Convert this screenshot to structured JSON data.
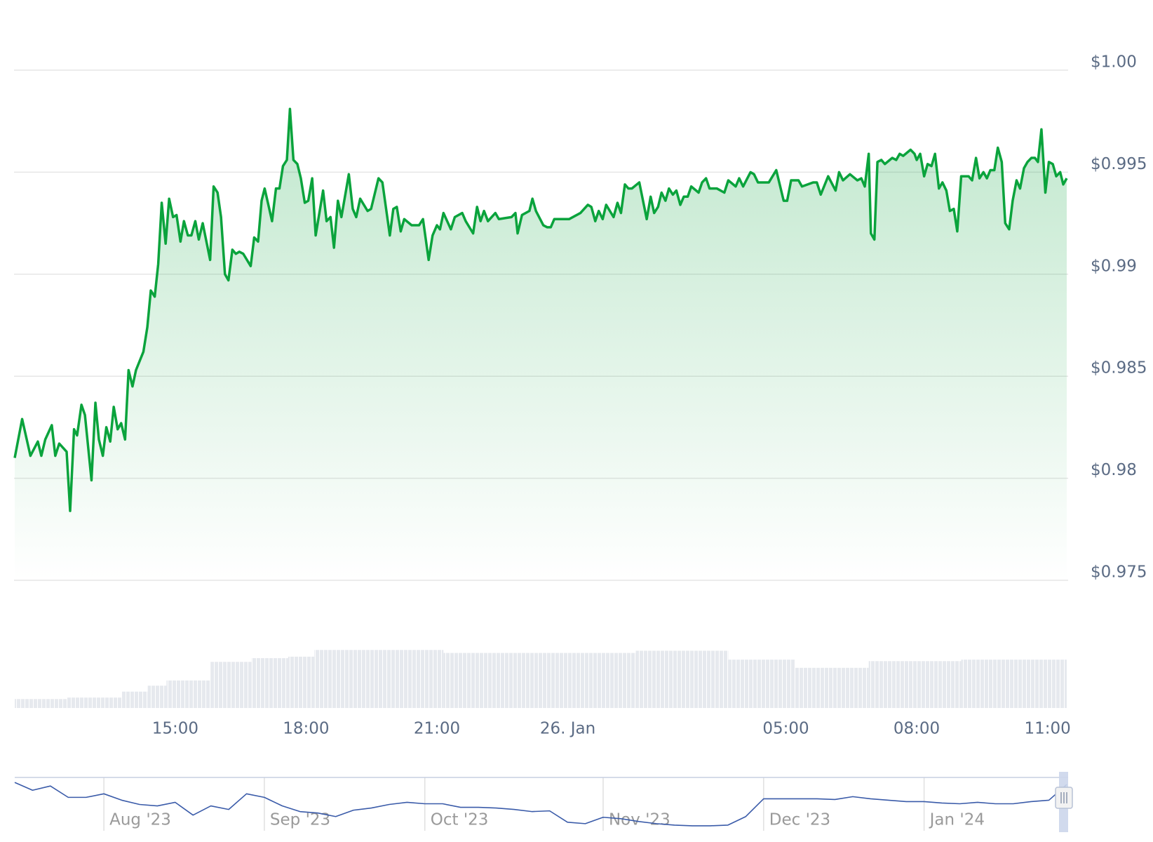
{
  "chart_data": [
    {
      "type": "area",
      "color": "#0aa33c",
      "grid": true,
      "xlim": [
        11.32,
        35.44
      ],
      "ylim": [
        0.975,
        1.0
      ],
      "xticks": [
        {
          "value": 15,
          "label": "15:00"
        },
        {
          "value": 18,
          "label": "18:00"
        },
        {
          "value": 21,
          "label": "21:00"
        },
        {
          "value": 24,
          "label": "26. Jan"
        },
        {
          "value": 29,
          "label": "05:00"
        },
        {
          "value": 32,
          "label": "08:00"
        },
        {
          "value": 35,
          "label": "11:00"
        }
      ],
      "yticks": [
        {
          "value": 0.975,
          "label": "$0.975"
        },
        {
          "value": 0.98,
          "label": "$0.98"
        },
        {
          "value": 0.985,
          "label": "$0.985"
        },
        {
          "value": 0.99,
          "label": "$0.99"
        },
        {
          "value": 0.995,
          "label": "$0.995"
        },
        {
          "value": 1.0,
          "label": "$1.00"
        }
      ],
      "x": [
        11.32,
        11.49,
        11.68,
        11.85,
        11.93,
        12.02,
        12.17,
        12.25,
        12.34,
        12.51,
        12.59,
        12.68,
        12.75,
        12.85,
        12.93,
        13.08,
        13.17,
        13.25,
        13.34,
        13.42,
        13.51,
        13.59,
        13.68,
        13.76,
        13.85,
        13.93,
        14.02,
        14.1,
        14.27,
        14.36,
        14.44,
        14.53,
        14.61,
        14.69,
        14.78,
        14.86,
        14.95,
        15.03,
        15.12,
        15.2,
        15.29,
        15.37,
        15.46,
        15.54,
        15.63,
        15.8,
        15.88,
        15.97,
        16.05,
        16.14,
        16.22,
        16.31,
        16.39,
        16.47,
        16.56,
        16.73,
        16.81,
        16.9,
        16.98,
        17.05,
        17.22,
        17.31,
        17.39,
        17.47,
        17.56,
        17.63,
        17.71,
        17.8,
        17.88,
        17.97,
        18.05,
        18.14,
        18.22,
        18.39,
        18.47,
        18.56,
        18.64,
        18.73,
        18.81,
        18.98,
        19.07,
        19.15,
        19.24,
        19.41,
        19.49,
        19.66,
        19.75,
        19.92,
        20.0,
        20.08,
        20.17,
        20.25,
        20.42,
        20.59,
        20.68,
        20.81,
        20.9,
        21.0,
        21.07,
        21.15,
        21.32,
        21.41,
        21.58,
        21.66,
        21.83,
        21.92,
        22.0,
        22.08,
        22.17,
        22.34,
        22.42,
        22.71,
        22.8,
        22.85,
        22.95,
        23.12,
        23.19,
        23.27,
        23.44,
        23.53,
        23.61,
        23.69,
        23.86,
        24.03,
        24.29,
        24.46,
        24.54,
        24.63,
        24.71,
        24.8,
        24.88,
        25.05,
        25.14,
        25.22,
        25.31,
        25.39,
        25.47,
        25.64,
        25.81,
        25.9,
        25.98,
        26.07,
        26.15,
        26.24,
        26.32,
        26.41,
        26.49,
        26.58,
        26.66,
        26.75,
        26.83,
        27.0,
        27.08,
        27.17,
        27.25,
        27.42,
        27.59,
        27.68,
        27.85,
        27.93,
        28.02,
        28.19,
        28.27,
        28.36,
        28.61,
        28.78,
        28.95,
        29.03,
        29.12,
        29.29,
        29.37,
        29.63,
        29.71,
        29.8,
        29.97,
        30.14,
        30.22,
        30.31,
        30.47,
        30.64,
        30.73,
        30.81,
        30.9,
        30.95,
        31.03,
        31.1,
        31.19,
        31.27,
        31.44,
        31.53,
        31.61,
        31.69,
        31.86,
        31.95,
        32.0,
        32.08,
        32.17,
        32.25,
        32.34,
        32.42,
        32.51,
        32.59,
        32.68,
        32.76,
        32.85,
        32.93,
        33.02,
        33.19,
        33.27,
        33.36,
        33.44,
        33.53,
        33.61,
        33.69,
        33.78,
        33.86,
        33.95,
        34.03,
        34.12,
        34.2,
        34.29,
        34.37,
        34.46,
        34.54,
        34.63,
        34.71,
        34.78,
        34.86,
        34.95,
        35.03,
        35.12,
        35.2,
        35.29,
        35.36,
        35.44
      ],
      "values": [
        0.981,
        0.9829,
        0.9811,
        0.9818,
        0.9811,
        0.9819,
        0.9826,
        0.9811,
        0.9817,
        0.9813,
        0.9784,
        0.9824,
        0.9821,
        0.9836,
        0.9831,
        0.9799,
        0.9837,
        0.9819,
        0.9811,
        0.9825,
        0.9818,
        0.9835,
        0.9824,
        0.9827,
        0.9819,
        0.9853,
        0.9845,
        0.9853,
        0.9862,
        0.9874,
        0.9892,
        0.9889,
        0.9905,
        0.9935,
        0.9915,
        0.9937,
        0.9928,
        0.9929,
        0.9916,
        0.9926,
        0.9919,
        0.9919,
        0.9926,
        0.9917,
        0.9925,
        0.9907,
        0.9943,
        0.994,
        0.9928,
        0.99,
        0.9897,
        0.9912,
        0.991,
        0.9911,
        0.991,
        0.9904,
        0.9918,
        0.9916,
        0.9936,
        0.9942,
        0.9926,
        0.9942,
        0.9942,
        0.9953,
        0.9956,
        0.9981,
        0.9956,
        0.9954,
        0.9947,
        0.9935,
        0.9936,
        0.9947,
        0.9919,
        0.9941,
        0.9926,
        0.9928,
        0.9913,
        0.9936,
        0.9928,
        0.9949,
        0.9932,
        0.9928,
        0.9937,
        0.9931,
        0.9932,
        0.9947,
        0.9945,
        0.9919,
        0.9932,
        0.9933,
        0.9921,
        0.9927,
        0.9924,
        0.9924,
        0.9927,
        0.9907,
        0.9919,
        0.9924,
        0.9922,
        0.993,
        0.9922,
        0.9928,
        0.993,
        0.9926,
        0.992,
        0.9933,
        0.9926,
        0.9931,
        0.9926,
        0.993,
        0.9927,
        0.9928,
        0.993,
        0.992,
        0.9929,
        0.9931,
        0.9937,
        0.9931,
        0.9924,
        0.9923,
        0.9923,
        0.9927,
        0.9927,
        0.9927,
        0.993,
        0.9934,
        0.9933,
        0.9926,
        0.9931,
        0.9927,
        0.9934,
        0.9928,
        0.9935,
        0.993,
        0.9944,
        0.9942,
        0.9942,
        0.9945,
        0.9927,
        0.9938,
        0.993,
        0.9933,
        0.994,
        0.9936,
        0.9942,
        0.9939,
        0.9941,
        0.9934,
        0.9938,
        0.9938,
        0.9943,
        0.994,
        0.9945,
        0.9947,
        0.9942,
        0.9942,
        0.994,
        0.9946,
        0.9943,
        0.9947,
        0.9943,
        0.995,
        0.9949,
        0.9945,
        0.9945,
        0.9951,
        0.9936,
        0.9936,
        0.9946,
        0.9946,
        0.9943,
        0.9945,
        0.9945,
        0.9939,
        0.9948,
        0.9941,
        0.995,
        0.9946,
        0.9949,
        0.9946,
        0.9947,
        0.9943,
        0.9959,
        0.992,
        0.9917,
        0.9955,
        0.9956,
        0.9954,
        0.9957,
        0.9956,
        0.9959,
        0.9958,
        0.9961,
        0.9959,
        0.9956,
        0.9959,
        0.9948,
        0.9954,
        0.9953,
        0.9959,
        0.9942,
        0.9945,
        0.9941,
        0.9931,
        0.9932,
        0.9921,
        0.9948,
        0.9948,
        0.9946,
        0.9957,
        0.9947,
        0.995,
        0.9947,
        0.9951,
        0.9951,
        0.9962,
        0.9955,
        0.9925,
        0.9922,
        0.9936,
        0.9946,
        0.9942,
        0.9952,
        0.9955,
        0.9957,
        0.9957,
        0.9955,
        0.9971,
        0.994,
        0.9955,
        0.9954,
        0.9948,
        0.995,
        0.9944,
        0.9947
      ]
    },
    {
      "type": "histogram",
      "color": "#e6e9ee",
      "xlim": [
        11.32,
        35.44
      ],
      "ylim": [
        0,
        100
      ],
      "bins": [
        11.32,
        12.51,
        13.78,
        14.37,
        14.8,
        15.81,
        16.75,
        17.59,
        18.19,
        21.15,
        25.56,
        27.68,
        29.2,
        30.9,
        33.02,
        35.44
      ],
      "values": [
        12,
        14,
        22,
        30,
        37,
        62,
        67,
        69,
        78,
        74,
        77,
        65,
        54,
        63,
        65
      ]
    },
    {
      "type": "line",
      "color": "#3a5ba9",
      "ylim": [
        0,
        75
      ],
      "categories": [
        null,
        null,
        null,
        null,
        null,
        "Aug '23",
        null,
        null,
        null,
        null,
        null,
        null,
        null,
        null,
        "Sep '23",
        null,
        null,
        null,
        null,
        null,
        null,
        null,
        null,
        "Oct '23",
        null,
        null,
        null,
        null,
        null,
        null,
        null,
        null,
        null,
        "Nov '23",
        null,
        null,
        null,
        null,
        null,
        null,
        null,
        null,
        "Dec '23",
        null,
        null,
        null,
        null,
        null,
        null,
        null,
        null,
        "Jan '24",
        null,
        null,
        null,
        null,
        null,
        null,
        null,
        null
      ],
      "values": [
        68,
        57,
        63,
        47,
        47,
        52,
        43,
        37,
        35,
        40,
        22,
        35,
        30,
        52,
        47,
        35,
        27,
        25,
        20,
        29,
        32,
        37,
        40,
        38,
        38,
        33,
        33,
        32,
        30,
        27,
        28,
        12,
        10,
        19,
        17,
        13,
        10,
        8,
        7,
        7,
        8,
        20,
        45,
        45,
        45,
        45,
        44,
        48,
        45,
        43,
        41,
        41,
        39,
        38,
        40,
        38,
        38,
        41,
        43,
        65
      ]
    }
  ]
}
